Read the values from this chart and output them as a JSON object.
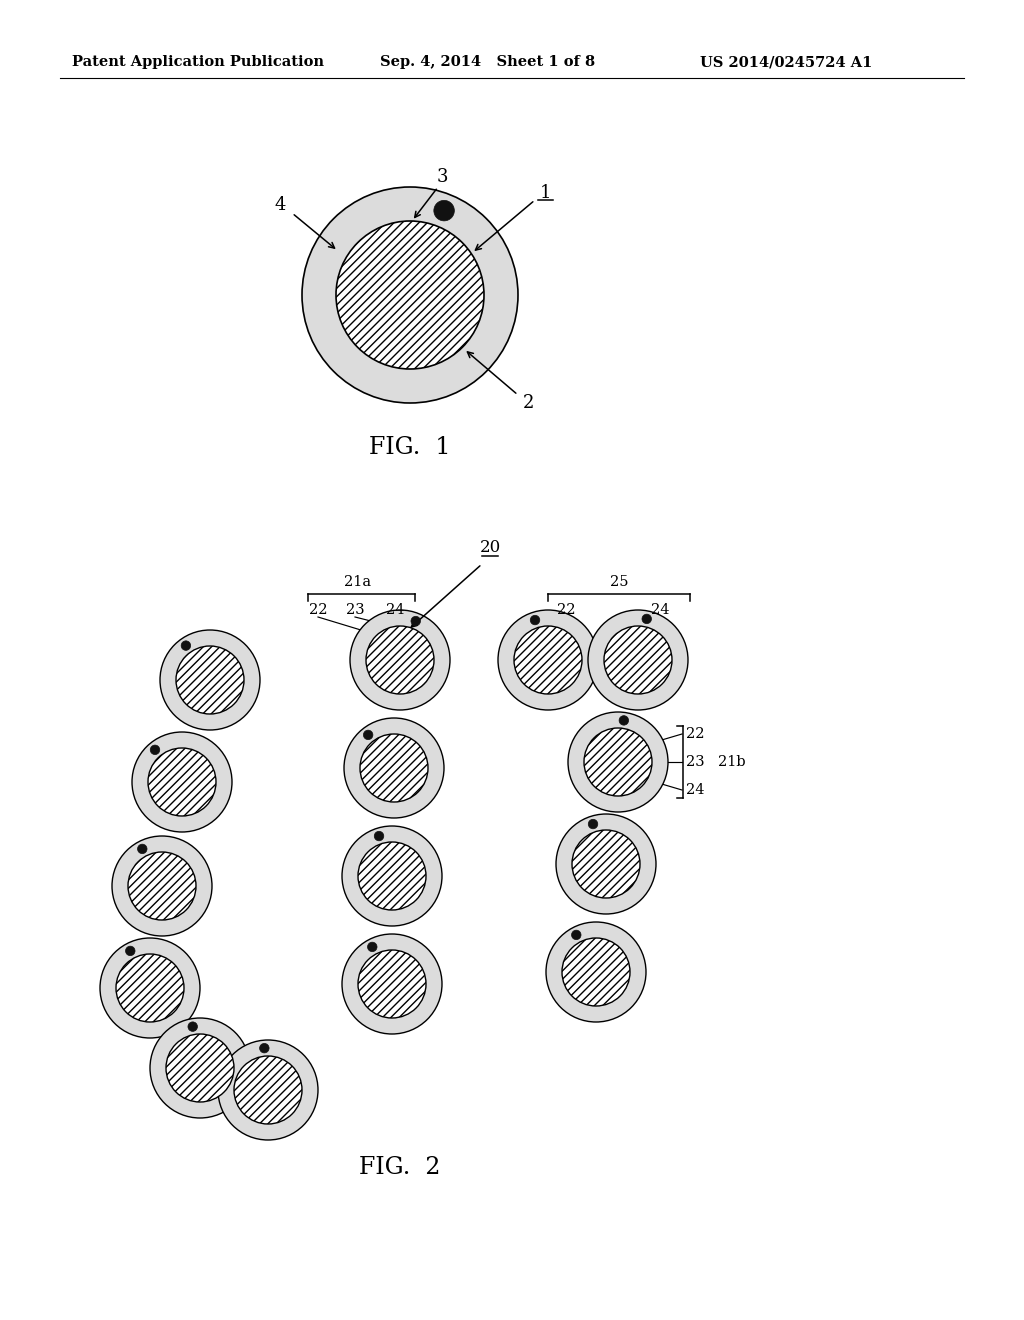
{
  "header_left": "Patent Application Publication",
  "header_mid": "Sep. 4, 2014   Sheet 1 of 8",
  "header_right": "US 2014/0245724 A1",
  "fig1_label": "FIG.  1",
  "fig2_label": "FIG.  2",
  "bg_color": "#ffffff",
  "outer_ring_color": "#e0e0e0",
  "dot_color": "#111111",
  "line_color": "#000000"
}
